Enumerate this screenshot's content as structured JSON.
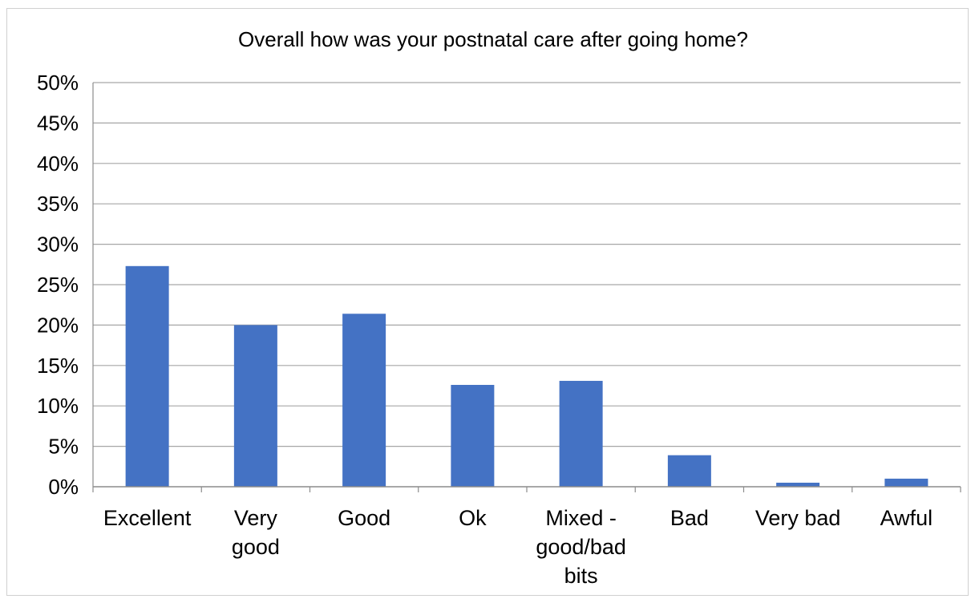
{
  "chart_data": {
    "type": "bar",
    "title": "Overall how was your postnatal care after going home?",
    "xlabel": "",
    "ylabel": "",
    "categories": [
      "Excellent",
      "Very good",
      "Good",
      "Ok",
      "Mixed - good/bad bits",
      "Bad",
      "Very bad",
      "Awful"
    ],
    "category_label_lines": [
      [
        "Excellent"
      ],
      [
        "Very",
        "good"
      ],
      [
        "Good"
      ],
      [
        "Ok"
      ],
      [
        "Mixed -",
        "good/bad",
        "bits"
      ],
      [
        "Bad"
      ],
      [
        "Very bad"
      ],
      [
        "Awful"
      ]
    ],
    "values": [
      27.3,
      20.0,
      21.4,
      12.6,
      13.1,
      3.9,
      0.5,
      1.0
    ],
    "ylim": [
      0,
      50
    ],
    "y_ticks": [
      "0%",
      "5%",
      "10%",
      "15%",
      "20%",
      "25%",
      "30%",
      "35%",
      "40%",
      "45%",
      "50%"
    ],
    "grid": true,
    "legend": "none",
    "colors": {
      "bar": "#4472C4",
      "grid": "#a6a6a6",
      "axis": "#8c8c8c"
    }
  }
}
